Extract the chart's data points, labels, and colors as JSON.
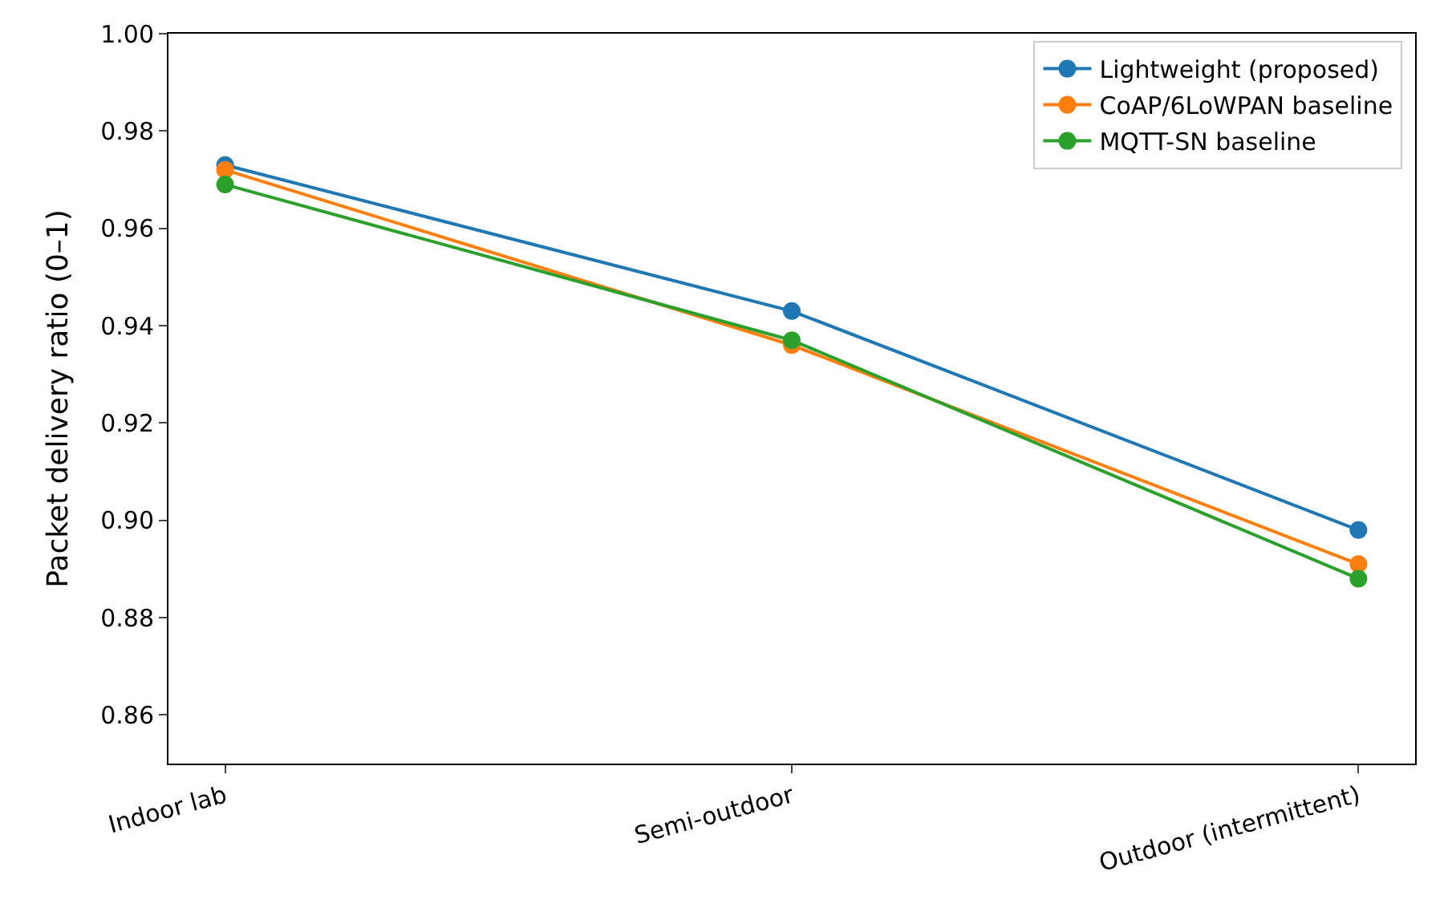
{
  "chart_data": {
    "type": "line",
    "ylabel": "Packet delivery ratio (0–1)",
    "categories": [
      "Indoor lab",
      "Semi-outdoor",
      "Outdoor (intermittent)"
    ],
    "series": [
      {
        "name": "Lightweight (proposed)",
        "color": "#1f77b4",
        "values": [
          0.973,
          0.943,
          0.898
        ]
      },
      {
        "name": "CoAP/6LoWPAN baseline",
        "color": "#ff7f0e",
        "values": [
          0.972,
          0.936,
          0.891
        ]
      },
      {
        "name": "MQTT-SN baseline",
        "color": "#2ca02c",
        "values": [
          0.969,
          0.937,
          0.888
        ]
      }
    ],
    "ylim": [
      0.85,
      1.0
    ],
    "yticks": [
      {
        "value": 0.86,
        "label": "0.86"
      },
      {
        "value": 0.88,
        "label": "0.88"
      },
      {
        "value": 0.9,
        "label": "0.90"
      },
      {
        "value": 0.92,
        "label": "0.92"
      },
      {
        "value": 0.94,
        "label": "0.94"
      },
      {
        "value": 0.96,
        "label": "0.96"
      },
      {
        "value": 0.98,
        "label": "0.98"
      },
      {
        "value": 1.0,
        "label": "1.00"
      }
    ],
    "legend": "top right",
    "marker": "circle",
    "line_style": "solid"
  }
}
